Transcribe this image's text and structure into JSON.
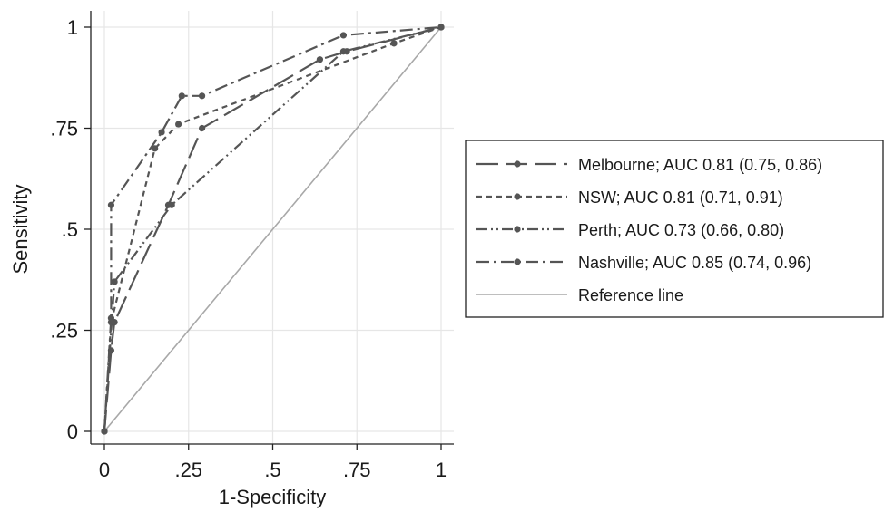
{
  "chart_data": {
    "type": "line",
    "xlabel": "1-Specificity",
    "ylabel": "Sensitivity",
    "xlim": [
      0,
      1
    ],
    "ylim": [
      0,
      1
    ],
    "x_ticks": [
      {
        "value": 0,
        "label": "0"
      },
      {
        "value": 0.25,
        "label": ".25"
      },
      {
        "value": 0.5,
        "label": ".5"
      },
      {
        "value": 0.75,
        "label": ".75"
      },
      {
        "value": 1,
        "label": "1"
      }
    ],
    "y_ticks": [
      {
        "value": 0,
        "label": "0"
      },
      {
        "value": 0.25,
        "label": ".25"
      },
      {
        "value": 0.5,
        "label": ".5"
      },
      {
        "value": 0.75,
        "label": ".75"
      },
      {
        "value": 1,
        "label": "1"
      }
    ],
    "grid": true,
    "legend_position": "right",
    "series": [
      {
        "name": "Melbourne; AUC 0.81 (0.75, 0.86)",
        "dash": "long-dash",
        "color": "#555555",
        "points": [
          [
            0,
            0
          ],
          [
            0.02,
            0.2
          ],
          [
            0.03,
            0.27
          ],
          [
            0.19,
            0.56
          ],
          [
            0.29,
            0.75
          ],
          [
            0.64,
            0.92
          ],
          [
            0.72,
            0.94
          ],
          [
            1,
            1
          ]
        ]
      },
      {
        "name": "NSW; AUC 0.81 (0.71, 0.91)",
        "dash": "short-dash",
        "color": "#555555",
        "points": [
          [
            0,
            0
          ],
          [
            0.02,
            0.27
          ],
          [
            0.15,
            0.7
          ],
          [
            0.22,
            0.76
          ],
          [
            0.86,
            0.96
          ],
          [
            1,
            1
          ]
        ]
      },
      {
        "name": "Perth; AUC 0.73 (0.66, 0.80)",
        "dash": "dash-dot-dot",
        "color": "#555555",
        "points": [
          [
            0,
            0
          ],
          [
            0.03,
            0.37
          ],
          [
            0.2,
            0.56
          ],
          [
            0.71,
            0.94
          ],
          [
            1,
            1
          ]
        ]
      },
      {
        "name": "Nashville; AUC 0.85 (0.74, 0.96)",
        "dash": "dash-dot",
        "color": "#555555",
        "points": [
          [
            0,
            0
          ],
          [
            0.02,
            0.28
          ],
          [
            0.02,
            0.56
          ],
          [
            0.17,
            0.74
          ],
          [
            0.23,
            0.83
          ],
          [
            0.29,
            0.83
          ],
          [
            0.71,
            0.98
          ],
          [
            1,
            1
          ]
        ]
      },
      {
        "name": "Reference line",
        "dash": "solid",
        "color": "#a8a8a8",
        "markers": false,
        "points": [
          [
            0,
            0
          ],
          [
            1,
            1
          ]
        ]
      }
    ]
  }
}
